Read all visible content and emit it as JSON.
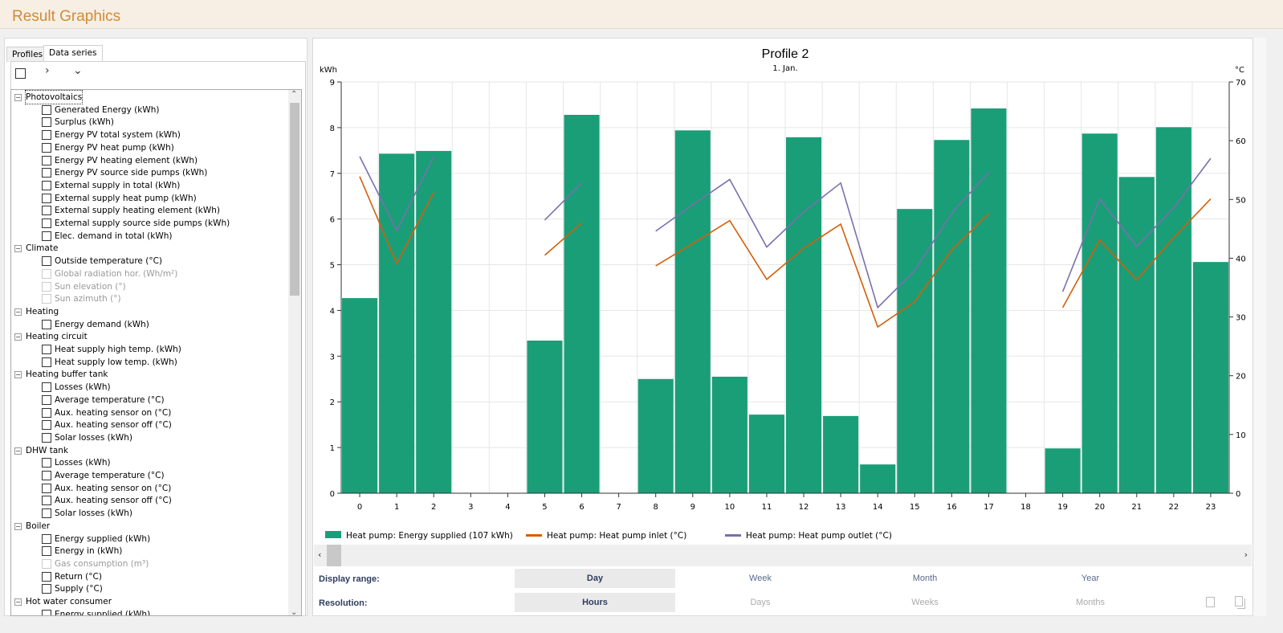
{
  "title": "Result Graphics",
  "tabs": [
    {
      "label": "Profiles"
    },
    {
      "label": "Data series"
    }
  ],
  "toolbar": {
    "icons": [
      "checkbox-icon",
      "chevron-right-icon",
      "chevron-down-icon"
    ]
  },
  "tree": [
    {
      "group": "Photovoltaics",
      "items": [
        {
          "label": "Generated Energy (kWh)"
        },
        {
          "label": "Surplus (kWh)"
        },
        {
          "label": "Energy PV total system (kWh)"
        },
        {
          "label": "Energy PV heat pump (kWh)"
        },
        {
          "label": "Energy PV heating element (kWh)"
        },
        {
          "label": "Energy PV source side pumps (kWh)"
        },
        {
          "label": "External supply in total (kWh)"
        },
        {
          "label": "External supply heat pump (kWh)"
        },
        {
          "label": "External supply heating element (kWh)"
        },
        {
          "label": "External supply source side pumps (kWh)"
        },
        {
          "label": "Elec. demand in total (kWh)"
        }
      ]
    },
    {
      "group": "Climate",
      "items": [
        {
          "label": "Outside temperature (°C)"
        },
        {
          "label": "Global radiation hor. (Wh/m²)",
          "disabled": true
        },
        {
          "label": "Sun elevation (°)",
          "disabled": true
        },
        {
          "label": "Sun azimuth (°)",
          "disabled": true
        }
      ]
    },
    {
      "group": "Heating",
      "items": [
        {
          "label": "Energy demand (kWh)"
        }
      ]
    },
    {
      "group": "Heating circuit",
      "items": [
        {
          "label": "Heat supply high temp. (kWh)"
        },
        {
          "label": "Heat supply low temp. (kWh)"
        }
      ]
    },
    {
      "group": "Heating buffer tank",
      "items": [
        {
          "label": "Losses (kWh)"
        },
        {
          "label": "Average temperature (°C)"
        },
        {
          "label": "Aux. heating sensor on (°C)"
        },
        {
          "label": "Aux. heating sensor off (°C)"
        },
        {
          "label": "Solar losses (kWh)"
        }
      ]
    },
    {
      "group": "DHW tank",
      "items": [
        {
          "label": "Losses (kWh)"
        },
        {
          "label": "Average temperature (°C)"
        },
        {
          "label": "Aux. heating sensor on (°C)"
        },
        {
          "label": "Aux. heating sensor off (°C)"
        },
        {
          "label": "Solar losses (kWh)"
        }
      ]
    },
    {
      "group": "Boiler",
      "items": [
        {
          "label": "Energy supplied (kWh)"
        },
        {
          "label": "Energy in (kWh)"
        },
        {
          "label": "Gas consumption (m³)",
          "disabled": true
        },
        {
          "label": "Return (°C)"
        },
        {
          "label": "Supply (°C)"
        }
      ]
    },
    {
      "group": "Hot water consumer",
      "items": [
        {
          "label": "Energy supplied (kWh)"
        }
      ]
    }
  ],
  "chart_data": {
    "type": "bar",
    "title": "Profile 2",
    "subtitle": "1. Jan.",
    "ylabel": "kWh",
    "y2label": "°C",
    "ylim": [
      0,
      9
    ],
    "y2lim": [
      0,
      70
    ],
    "yticks": [
      0,
      1,
      2,
      3,
      4,
      5,
      6,
      7,
      8,
      9
    ],
    "y2ticks": [
      0,
      10,
      20,
      30,
      40,
      50,
      60,
      70
    ],
    "categories": [
      "0",
      "1",
      "2",
      "3",
      "4",
      "5",
      "6",
      "7",
      "8",
      "9",
      "10",
      "11",
      "12",
      "13",
      "14",
      "15",
      "16",
      "17",
      "18",
      "19",
      "20",
      "21",
      "22",
      "23"
    ],
    "grid": true,
    "legend": "bottom",
    "series": [
      {
        "name": "Heat pump: Energy supplied (107 kWh)",
        "type": "bar",
        "axis": "left",
        "color": "#1a9e78",
        "values": [
          4.27,
          7.43,
          7.49,
          0,
          0,
          3.34,
          8.28,
          0,
          2.5,
          7.94,
          2.55,
          1.72,
          7.79,
          1.69,
          0.63,
          6.22,
          7.73,
          8.42,
          0,
          0.98,
          7.87,
          6.92,
          8.01,
          5.06
        ]
      },
      {
        "name": "Heat pump: Heat pump inlet (°C)",
        "type": "line",
        "axis": "right",
        "color": "#d35f0a",
        "values": [
          53.9,
          39.1,
          51.2,
          null,
          null,
          40.5,
          46,
          null,
          38.7,
          42.5,
          46.4,
          36.4,
          41.7,
          45.8,
          28.3,
          32.6,
          41.4,
          47.6,
          null,
          31.6,
          43.1,
          36.3,
          43.5,
          50.1
        ]
      },
      {
        "name": "Heat pump: Heat pump outlet (°C)",
        "type": "line",
        "axis": "right",
        "color": "#7a6fad",
        "values": [
          57.3,
          44.7,
          57.3,
          null,
          null,
          46.5,
          52.8,
          null,
          44.6,
          49.1,
          53.4,
          41.9,
          47.9,
          52.8,
          31.6,
          37.9,
          47.7,
          54.6,
          null,
          34.3,
          50.1,
          42,
          48.6,
          57
        ]
      }
    ]
  },
  "controls": {
    "display_range_label": "Display range:",
    "display_range": [
      "Day",
      "Week",
      "Month",
      "Year"
    ],
    "display_range_selected": "Day",
    "resolution_label": "Resolution:",
    "resolution": [
      "Hours",
      "Days",
      "Weeks",
      "Months"
    ],
    "resolution_selected": "Hours",
    "icons": [
      "save-icon",
      "copy-icon"
    ]
  }
}
